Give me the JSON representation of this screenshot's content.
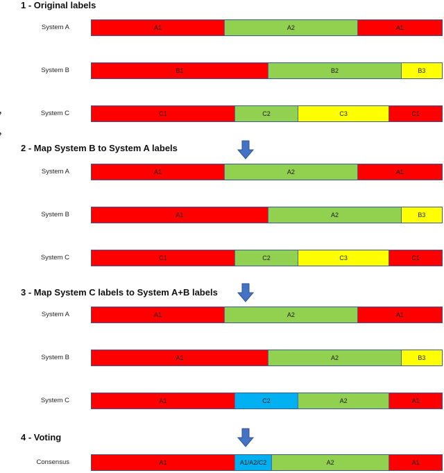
{
  "side_fragments": [
    ",",
    ","
  ],
  "sections": [
    {
      "heading": "1 - Original labels",
      "rows": [
        {
          "label": "System A",
          "segments": [
            {
              "text": "A1",
              "color": "red",
              "frac": 0.38
            },
            {
              "text": "A2",
              "color": "green",
              "frac": 0.38
            },
            {
              "text": "A1",
              "color": "red",
              "frac": 0.24
            }
          ]
        },
        {
          "label": "System B",
          "segments": [
            {
              "text": "B1",
              "color": "red",
              "frac": 0.505
            },
            {
              "text": "B2",
              "color": "green",
              "frac": 0.38
            },
            {
              "text": "B3",
              "color": "yellow",
              "frac": 0.115
            }
          ]
        },
        {
          "label": "System C",
          "segments": [
            {
              "text": "C1",
              "color": "red",
              "frac": 0.41
            },
            {
              "text": "C2",
              "color": "green",
              "frac": 0.18
            },
            {
              "text": "C3",
              "color": "yellow",
              "frac": 0.26
            },
            {
              "text": "C1",
              "color": "red",
              "frac": 0.15
            }
          ]
        }
      ]
    },
    {
      "heading": "2 - Map System B to System A labels",
      "rows": [
        {
          "label": "System A",
          "segments": [
            {
              "text": "A1",
              "color": "red",
              "frac": 0.38
            },
            {
              "text": "A2",
              "color": "green",
              "frac": 0.38
            },
            {
              "text": "A1",
              "color": "red",
              "frac": 0.24
            }
          ]
        },
        {
          "label": "System B",
          "segments": [
            {
              "text": "A1",
              "color": "red",
              "frac": 0.505
            },
            {
              "text": "A2",
              "color": "green",
              "frac": 0.38
            },
            {
              "text": "B3",
              "color": "yellow",
              "frac": 0.115
            }
          ]
        },
        {
          "label": "System C",
          "segments": [
            {
              "text": "C1",
              "color": "red",
              "frac": 0.41
            },
            {
              "text": "C2",
              "color": "green",
              "frac": 0.18
            },
            {
              "text": "C3",
              "color": "yellow",
              "frac": 0.26
            },
            {
              "text": "C1",
              "color": "red",
              "frac": 0.15
            }
          ]
        }
      ]
    },
    {
      "heading": "3 - Map System C labels to System A+B labels",
      "rows": [
        {
          "label": "System A",
          "segments": [
            {
              "text": "A1",
              "color": "red",
              "frac": 0.38
            },
            {
              "text": "A2",
              "color": "green",
              "frac": 0.38
            },
            {
              "text": "A1",
              "color": "red",
              "frac": 0.24
            }
          ]
        },
        {
          "label": "System B",
          "segments": [
            {
              "text": "A1",
              "color": "red",
              "frac": 0.505
            },
            {
              "text": "A2",
              "color": "green",
              "frac": 0.38
            },
            {
              "text": "B3",
              "color": "yellow",
              "frac": 0.115
            }
          ]
        },
        {
          "label": "System C",
          "segments": [
            {
              "text": "A1",
              "color": "red",
              "frac": 0.41
            },
            {
              "text": "C2",
              "color": "blue",
              "frac": 0.18
            },
            {
              "text": "A2",
              "color": "green",
              "frac": 0.26
            },
            {
              "text": "A1",
              "color": "red",
              "frac": 0.15
            }
          ]
        }
      ]
    },
    {
      "heading": "4 - Voting",
      "rows": [
        {
          "label": "Consensus",
          "segments": [
            {
              "text": "A1",
              "color": "red",
              "frac": 0.41
            },
            {
              "text": "A1/A2/C2",
              "color": "blue",
              "frac": 0.105
            },
            {
              "text": "A2",
              "color": "green",
              "frac": 0.335
            },
            {
              "text": "A1",
              "color": "red",
              "frac": 0.15
            }
          ]
        }
      ]
    }
  ]
}
